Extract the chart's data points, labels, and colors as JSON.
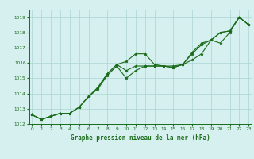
{
  "xlabel": "Graphe pression niveau de la mer (hPa)",
  "x_ticks": [
    0,
    1,
    2,
    3,
    4,
    5,
    6,
    7,
    8,
    9,
    10,
    11,
    12,
    13,
    14,
    15,
    16,
    17,
    18,
    19,
    20,
    21,
    22,
    23
  ],
  "ylim": [
    1012,
    1019.5
  ],
  "xlim": [
    -0.3,
    23.3
  ],
  "yticks": [
    1012,
    1013,
    1014,
    1015,
    1016,
    1017,
    1018,
    1019
  ],
  "bg_color": "#d6efef",
  "grid_color": "#aad4d4",
  "line_color": "#1a6b1a",
  "marker_color": "#1a6b1a",
  "series1": {
    "x": [
      0,
      1,
      2,
      3,
      4,
      5,
      6,
      7,
      8,
      9,
      10,
      11,
      12,
      13,
      14,
      15,
      16,
      17,
      18,
      19,
      20,
      21,
      22,
      23
    ],
    "y": [
      1012.6,
      1012.3,
      1012.5,
      1012.7,
      1012.7,
      1013.1,
      1013.8,
      1014.4,
      1015.3,
      1015.9,
      1016.1,
      1016.6,
      1016.6,
      1015.9,
      1015.8,
      1015.8,
      1015.9,
      1016.2,
      1016.6,
      1017.5,
      1017.3,
      1018.0,
      1019.0,
      1018.5
    ]
  },
  "series2": {
    "x": [
      0,
      1,
      2,
      3,
      4,
      5,
      6,
      7,
      8,
      9,
      10,
      11,
      12,
      13,
      14,
      15,
      16,
      17,
      18,
      19,
      20,
      21,
      22,
      23
    ],
    "y": [
      1012.6,
      1012.3,
      1012.5,
      1012.7,
      1012.7,
      1013.1,
      1013.8,
      1014.3,
      1015.2,
      1015.8,
      1015.0,
      1015.5,
      1015.8,
      1015.8,
      1015.8,
      1015.7,
      1015.9,
      1016.6,
      1017.2,
      1017.5,
      1018.0,
      1018.1,
      1019.0,
      1018.5
    ]
  },
  "series3": {
    "x": [
      0,
      1,
      2,
      3,
      4,
      5,
      6,
      7,
      8,
      9,
      10,
      11,
      12,
      13,
      14,
      15,
      16,
      17,
      18,
      19,
      20,
      21,
      22,
      23
    ],
    "y": [
      1012.6,
      1012.3,
      1012.5,
      1012.7,
      1012.7,
      1013.1,
      1013.8,
      1014.4,
      1015.3,
      1015.9,
      1015.5,
      1015.8,
      1015.8,
      1015.8,
      1015.8,
      1015.7,
      1015.9,
      1016.7,
      1017.3,
      1017.5,
      1018.0,
      1018.1,
      1019.0,
      1018.5
    ]
  }
}
